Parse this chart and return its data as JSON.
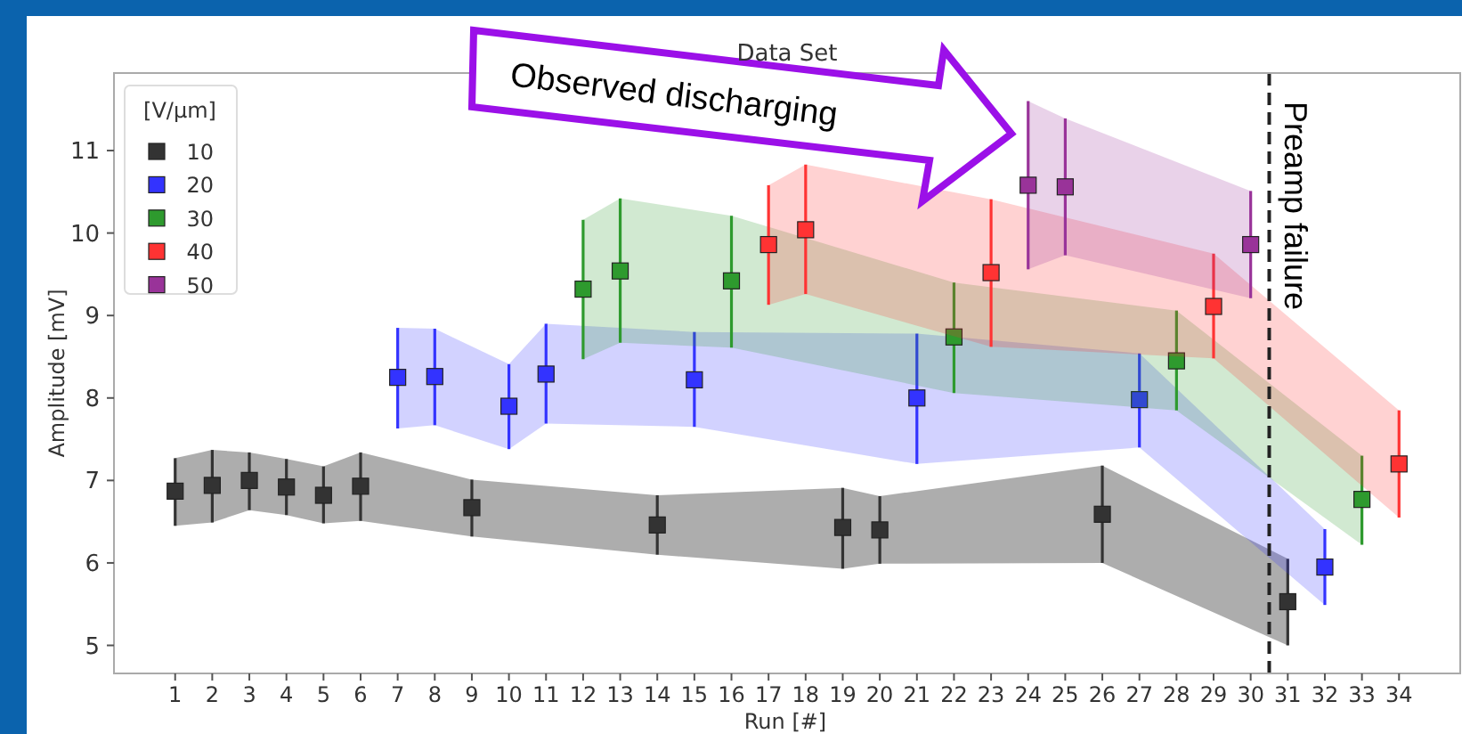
{
  "chart_data": {
    "type": "scatter",
    "title": "Data Set",
    "xlabel": "Run [#]",
    "ylabel": "Amplitude [mV]",
    "legend_title": "[V/μm]",
    "legend": "top left",
    "grid": false,
    "marker": "square",
    "xlim": [
      -0.65,
      35.65
    ],
    "xticks": [
      1,
      2,
      3,
      4,
      5,
      6,
      7,
      8,
      9,
      10,
      11,
      12,
      13,
      14,
      15,
      16,
      17,
      18,
      19,
      20,
      21,
      22,
      23,
      24,
      25,
      26,
      27,
      28,
      29,
      30,
      31,
      32,
      33,
      34
    ],
    "ylim": [
      4.66,
      11.94
    ],
    "yticks": [
      5,
      6,
      7,
      8,
      9,
      10,
      11
    ],
    "series": [
      {
        "name": "10",
        "color": "#333333",
        "x": [
          1,
          2,
          3,
          4,
          5,
          6,
          9,
          14,
          19,
          20,
          26,
          31
        ],
        "values": [
          6.87,
          6.94,
          7.0,
          6.92,
          6.82,
          6.93,
          6.67,
          6.46,
          6.43,
          6.4,
          6.59,
          5.53
        ],
        "errors": [
          [
            6.45,
            7.27
          ],
          [
            6.49,
            7.37
          ],
          [
            6.64,
            7.34
          ],
          [
            6.58,
            7.26
          ],
          [
            6.48,
            7.17
          ],
          [
            6.51,
            7.34
          ],
          [
            6.32,
            7.01
          ],
          [
            6.1,
            6.82
          ],
          [
            5.93,
            6.91
          ],
          [
            5.99,
            6.81
          ],
          [
            6.0,
            7.18
          ],
          [
            5.0,
            6.05
          ]
        ],
        "lower": [
          6.45,
          6.49,
          6.64,
          6.58,
          6.48,
          6.51,
          6.32,
          6.1,
          5.93,
          5.99,
          6.0,
          5.0
        ],
        "upper": [
          7.27,
          7.37,
          7.34,
          7.26,
          7.17,
          7.34,
          7.01,
          6.82,
          6.91,
          6.81,
          7.18,
          6.05
        ]
      },
      {
        "name": "20",
        "color": "#3333ff",
        "x": [
          7,
          8,
          10,
          11,
          15,
          21,
          27,
          32
        ],
        "values": [
          8.25,
          8.26,
          7.9,
          8.29,
          8.22,
          8.0,
          7.98,
          5.95
        ],
        "errors": [
          [
            7.63,
            8.85
          ],
          [
            7.67,
            8.84
          ],
          [
            7.38,
            8.41
          ],
          [
            7.69,
            8.9
          ],
          [
            7.65,
            8.8
          ],
          [
            7.2,
            8.78
          ],
          [
            7.4,
            8.54
          ],
          [
            5.49,
            6.41
          ]
        ],
        "lower": [
          7.63,
          7.67,
          7.38,
          7.69,
          7.65,
          7.2,
          7.4,
          5.49
        ],
        "upper": [
          8.85,
          8.84,
          8.41,
          8.9,
          8.8,
          8.78,
          8.54,
          6.41
        ]
      },
      {
        "name": "30",
        "color": "#2e9a2e",
        "x": [
          12,
          13,
          16,
          22,
          28,
          33
        ],
        "values": [
          9.32,
          9.54,
          9.42,
          8.74,
          8.45,
          6.77
        ],
        "errors": [
          [
            8.47,
            10.16
          ],
          [
            8.67,
            10.42
          ],
          [
            8.61,
            10.21
          ],
          [
            8.06,
            9.4
          ],
          [
            7.85,
            9.06
          ],
          [
            6.22,
            7.3
          ]
        ],
        "lower": [
          8.47,
          8.67,
          8.61,
          8.06,
          7.85,
          6.22
        ],
        "upper": [
          10.16,
          10.42,
          10.21,
          9.4,
          9.06,
          7.3
        ]
      },
      {
        "name": "40",
        "color": "#ff3333",
        "x": [
          17,
          18,
          23,
          29,
          34
        ],
        "values": [
          9.86,
          10.04,
          9.52,
          9.11,
          7.2
        ],
        "errors": [
          [
            9.13,
            10.58
          ],
          [
            9.26,
            10.83
          ],
          [
            8.62,
            10.41
          ],
          [
            8.48,
            9.75
          ],
          [
            6.55,
            7.85
          ]
        ],
        "lower": [
          9.13,
          9.26,
          8.62,
          8.48,
          6.55
        ],
        "upper": [
          10.58,
          10.83,
          10.41,
          9.75,
          7.85
        ]
      },
      {
        "name": "50",
        "color": "#993399",
        "x": [
          24,
          25,
          30
        ],
        "values": [
          10.58,
          10.56,
          9.86
        ],
        "errors": [
          [
            9.56,
            11.6
          ],
          [
            9.73,
            11.39
          ],
          [
            9.21,
            10.51
          ]
        ],
        "lower": [
          9.56,
          9.73,
          9.21
        ],
        "upper": [
          11.6,
          11.39,
          10.51
        ]
      }
    ],
    "ref_lines": [
      {
        "axis": "x",
        "value": 30.5,
        "label": "Preamp failure",
        "color": "#222222",
        "line_style": "dashed"
      }
    ],
    "annotations": [
      "Observed discharging"
    ]
  }
}
